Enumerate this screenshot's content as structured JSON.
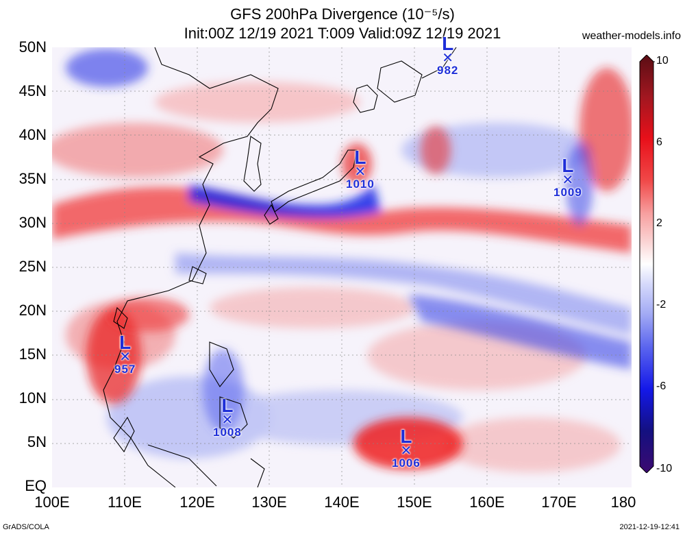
{
  "title_line1": "GFS 200hPa Divergence (10⁻⁵/s)",
  "title_line2": "Init:00Z 12/19 2021 T:009 Valid:09Z 12/19 2021",
  "site": "weather-models.info",
  "credit": "GrADS/COLA",
  "timestamp": "2021-12-19-12:41",
  "lat_labels": [
    "50N",
    "45N",
    "40N",
    "35N",
    "30N",
    "25N",
    "20N",
    "15N",
    "10N",
    "5N",
    "EQ"
  ],
  "lon_labels": [
    "100E",
    "110E",
    "120E",
    "130E",
    "140E",
    "150E",
    "160E",
    "170E",
    "180"
  ],
  "colorbar": {
    "labels": [
      "10",
      "6",
      "2",
      "-2",
      "-6",
      "-10"
    ],
    "colors": [
      "#5a0d14",
      "#a11720",
      "#e8101a",
      "#f04848",
      "#f7a0a0",
      "#fbd6d6",
      "#ffffff",
      "#d4d8fb",
      "#a2aaf4",
      "#5a64ee",
      "#1418e8",
      "#141080",
      "#3c0a70"
    ]
  },
  "lows": [
    {
      "pressure": "982",
      "lon": 155.5,
      "lat": 49
    },
    {
      "pressure": "1010",
      "lon": 143.2,
      "lat": 35.3
    },
    {
      "pressure": "1009",
      "lon": 171.5,
      "lat": 34.5
    },
    {
      "pressure": "957",
      "lon": 110.5,
      "lat": 14.3
    },
    {
      "pressure": "1008",
      "lon": 124.8,
      "lat": 7.2
    },
    {
      "pressure": "1006",
      "lon": 149.3,
      "lat": 3.5
    }
  ],
  "map": {
    "lon_range": [
      100,
      180
    ],
    "lat_range": [
      0,
      50
    ],
    "positive_color": "#e8101a",
    "negative_color": "#1a2ae6"
  }
}
